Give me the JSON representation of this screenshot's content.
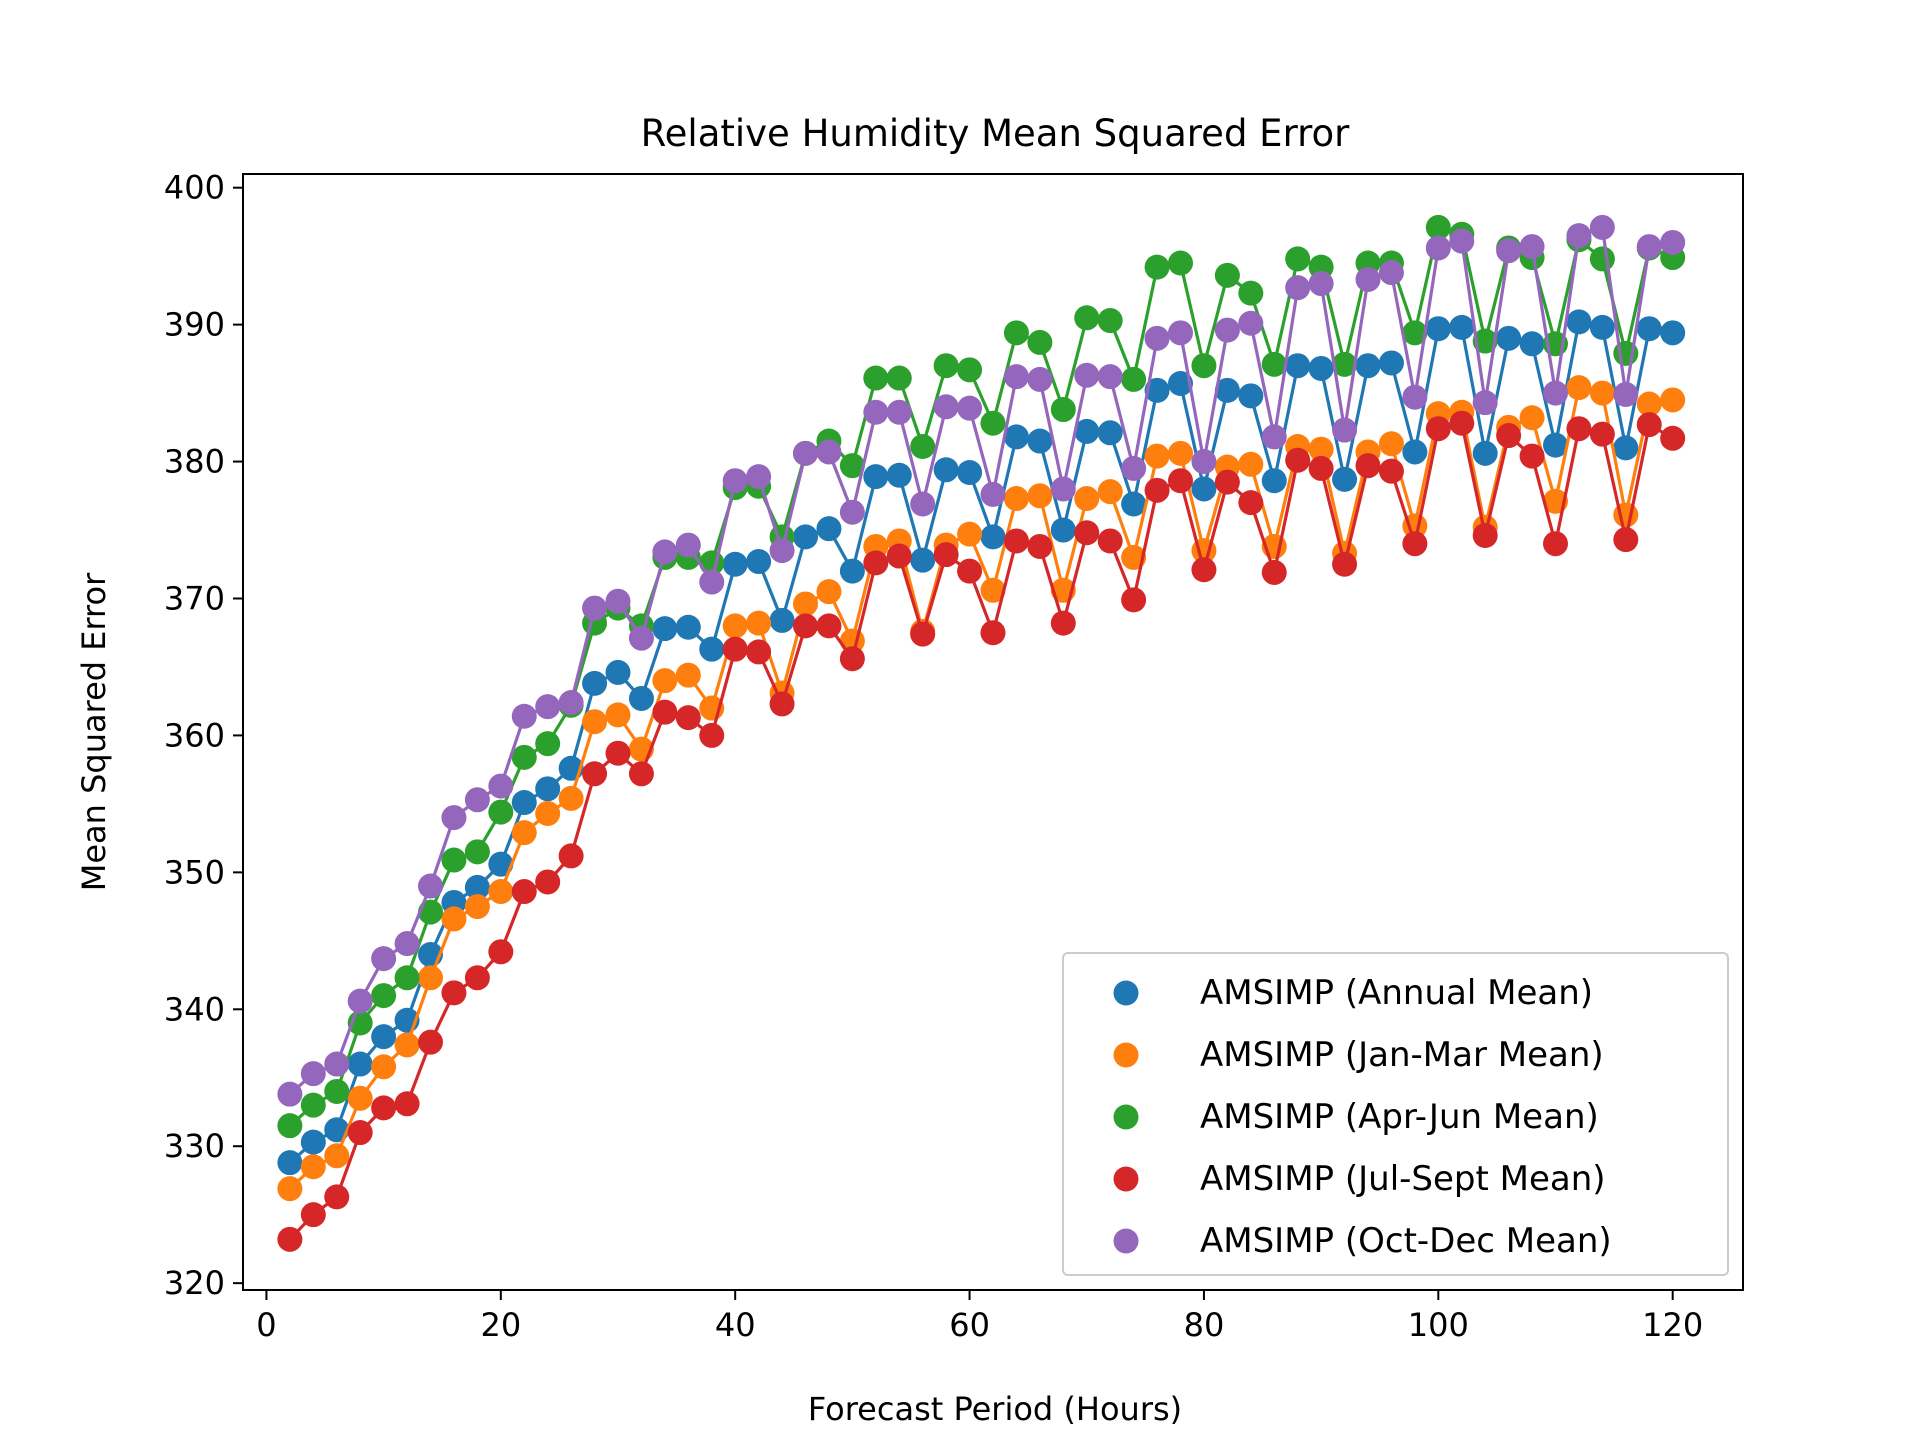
{
  "chart_data": {
    "type": "line",
    "title": "Relative Humidity Mean Squared Error",
    "xlabel": "Forecast Period (Hours)",
    "ylabel": "Mean Squared Error",
    "xlim": [
      -2,
      126
    ],
    "ylim": [
      319.5,
      401
    ],
    "xticks": [
      0,
      20,
      40,
      60,
      80,
      100,
      120
    ],
    "yticks": [
      320,
      330,
      340,
      350,
      360,
      370,
      380,
      390,
      400
    ],
    "grid": false,
    "legend_position": "lower right",
    "x": [
      2,
      4,
      6,
      8,
      10,
      12,
      14,
      16,
      18,
      20,
      22,
      24,
      26,
      28,
      30,
      32,
      34,
      36,
      38,
      40,
      42,
      44,
      46,
      48,
      50,
      52,
      54,
      56,
      58,
      60,
      62,
      64,
      66,
      68,
      70,
      72,
      74,
      76,
      78,
      80,
      82,
      84,
      86,
      88,
      90,
      92,
      94,
      96,
      98,
      100,
      102,
      104,
      106,
      108,
      110,
      112,
      114,
      116,
      118,
      120
    ],
    "series": [
      {
        "name": "AMSIMP (Annual Mean)",
        "color": "#1f77b4",
        "values": [
          328.8,
          330.3,
          331.2,
          336.0,
          338.0,
          339.2,
          344.0,
          347.8,
          348.9,
          350.6,
          355.1,
          356.1,
          357.6,
          363.8,
          364.6,
          362.7,
          367.8,
          367.9,
          366.3,
          372.5,
          372.7,
          368.4,
          374.5,
          375.1,
          372.0,
          378.9,
          379.0,
          372.8,
          379.4,
          379.2,
          374.5,
          381.8,
          381.5,
          375.0,
          382.2,
          382.1,
          376.9,
          385.2,
          385.7,
          378.0,
          385.2,
          384.8,
          378.6,
          387.0,
          386.8,
          378.7,
          387.0,
          387.2,
          380.7,
          389.7,
          389.8,
          380.6,
          389.0,
          388.6,
          381.2,
          390.2,
          389.8,
          381.0,
          389.7,
          389.4
        ]
      },
      {
        "name": "AMSIMP (Jan-Mar Mean)",
        "color": "#ff7f0e",
        "values": [
          326.9,
          328.5,
          329.3,
          333.5,
          335.8,
          337.4,
          342.3,
          346.6,
          347.5,
          348.6,
          352.9,
          354.3,
          355.4,
          361.0,
          361.5,
          359.0,
          364.0,
          364.4,
          362.0,
          368.0,
          368.2,
          363.1,
          369.6,
          370.5,
          366.9,
          373.8,
          374.2,
          367.6,
          373.9,
          374.7,
          370.6,
          377.3,
          377.5,
          370.6,
          377.3,
          377.8,
          373.0,
          380.4,
          380.6,
          373.5,
          379.6,
          379.8,
          373.8,
          381.1,
          380.9,
          373.3,
          380.7,
          381.3,
          375.3,
          383.5,
          383.6,
          375.2,
          382.5,
          383.2,
          377.1,
          385.4,
          385.0,
          376.1,
          384.2,
          384.5
        ]
      },
      {
        "name": "AMSIMP (Apr-Jun Mean)",
        "color": "#2ca02c",
        "values": [
          331.5,
          333.0,
          334.0,
          339.0,
          341.0,
          342.3,
          347.1,
          350.9,
          351.5,
          354.4,
          358.4,
          359.4,
          362.2,
          368.2,
          369.3,
          368.0,
          373.0,
          373.0,
          372.6,
          378.1,
          378.2,
          374.5,
          380.6,
          381.5,
          379.7,
          386.1,
          386.1,
          381.1,
          387.0,
          386.7,
          382.8,
          389.4,
          388.7,
          383.8,
          390.5,
          390.3,
          386.0,
          394.2,
          394.5,
          387.0,
          393.6,
          392.3,
          387.1,
          394.8,
          394.2,
          387.1,
          394.5,
          394.5,
          389.4,
          397.1,
          396.6,
          388.8,
          395.6,
          394.9,
          388.6,
          396.2,
          394.8,
          387.9,
          395.6,
          394.9
        ]
      },
      {
        "name": "AMSIMP (Jul-Sept Mean)",
        "color": "#d62728",
        "values": [
          323.2,
          325.0,
          326.3,
          331.0,
          332.8,
          333.1,
          337.6,
          341.2,
          342.3,
          344.2,
          348.6,
          349.3,
          351.2,
          357.2,
          358.7,
          357.2,
          361.7,
          361.3,
          360.0,
          366.3,
          366.1,
          362.3,
          368.0,
          368.0,
          365.6,
          372.6,
          373.1,
          367.4,
          373.2,
          372.0,
          367.5,
          374.2,
          373.8,
          368.2,
          374.8,
          374.2,
          369.9,
          377.9,
          378.6,
          372.1,
          378.5,
          377.0,
          371.9,
          380.1,
          379.5,
          372.5,
          379.7,
          379.3,
          374.0,
          382.4,
          382.8,
          374.6,
          381.9,
          380.4,
          374.0,
          382.4,
          382.0,
          374.3,
          382.7,
          381.7
        ]
      },
      {
        "name": "AMSIMP (Oct-Dec Mean)",
        "color": "#9467bd",
        "values": [
          333.8,
          335.3,
          336.0,
          340.6,
          343.7,
          344.8,
          349.0,
          354.0,
          355.3,
          356.3,
          361.4,
          362.1,
          362.4,
          369.3,
          369.8,
          367.1,
          373.4,
          373.9,
          371.2,
          378.6,
          378.9,
          373.5,
          380.6,
          380.7,
          376.3,
          383.6,
          383.6,
          376.9,
          384.0,
          383.9,
          377.6,
          386.2,
          386.0,
          378.0,
          386.3,
          386.2,
          379.5,
          389.0,
          389.4,
          380.0,
          389.6,
          390.1,
          381.8,
          392.7,
          393.0,
          382.3,
          393.3,
          393.8,
          384.7,
          395.6,
          396.1,
          384.3,
          395.4,
          395.7,
          385.0,
          396.5,
          397.1,
          384.9,
          395.7,
          396.0
        ]
      }
    ]
  }
}
